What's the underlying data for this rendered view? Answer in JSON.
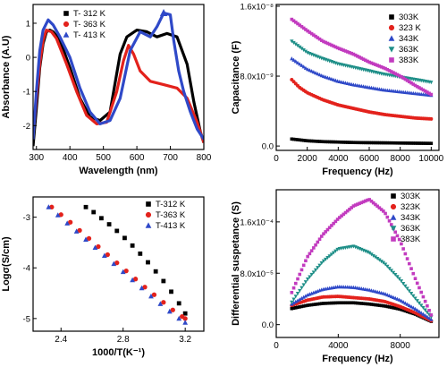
{
  "chart_data": [
    {
      "type": "line",
      "xlabel": "Wavelength (nm)",
      "ylabel": "Absorbance (A.U)",
      "xlim": [
        290,
        800
      ],
      "ylim": [
        -2.7,
        1.55
      ],
      "xticks": [
        300,
        400,
        500,
        600,
        700,
        800
      ],
      "yticks": [
        -2,
        -1,
        0,
        1
      ],
      "tick_labels_x": [
        "300",
        "400",
        "500",
        "600",
        "700",
        "800"
      ],
      "tick_labels_y": [
        "-2",
        "-1",
        "0",
        "1"
      ],
      "legend_position": "top-left",
      "grid": false,
      "series": [
        {
          "name": "T- 312 K",
          "color": "#000000",
          "marker": "square",
          "markers_at": [],
          "x": [
            290,
            300,
            310,
            320,
            330,
            340,
            350,
            370,
            400,
            430,
            460,
            490,
            520,
            550,
            570,
            600,
            630,
            660,
            690,
            720,
            750,
            770,
            790,
            800
          ],
          "y": [
            -2.6,
            -1.5,
            -0.3,
            0.4,
            0.75,
            0.8,
            0.75,
            0.5,
            -0.3,
            -1.2,
            -1.75,
            -1.85,
            -1.6,
            0.1,
            0.6,
            0.8,
            0.75,
            0.6,
            0.7,
            0.6,
            -0.2,
            -1.3,
            -2.2,
            -2.5
          ]
        },
        {
          "name": "T- 363 K",
          "color": "#e3221c",
          "marker": "circle",
          "markers_at": [],
          "x": [
            290,
            300,
            310,
            320,
            330,
            345,
            360,
            390,
            420,
            450,
            480,
            510,
            540,
            560,
            575,
            590,
            610,
            640,
            680,
            720,
            750,
            780,
            800
          ],
          "y": [
            -2.3,
            -1.2,
            -0.2,
            0.5,
            0.8,
            0.75,
            0.55,
            -0.2,
            -1.0,
            -1.7,
            -1.95,
            -1.9,
            -1.0,
            -0.1,
            0.35,
            0.1,
            -0.4,
            -0.7,
            -0.8,
            -0.9,
            -1.2,
            -1.9,
            -2.5
          ]
        },
        {
          "name": "T- 413 K",
          "color": "#2f49c8",
          "marker": "triangle",
          "markers_at": [
            680
          ],
          "x": [
            290,
            300,
            310,
            320,
            335,
            350,
            370,
            400,
            430,
            460,
            490,
            520,
            550,
            580,
            610,
            640,
            660,
            680,
            700,
            710,
            725,
            740,
            760,
            780,
            800
          ],
          "y": [
            -2.4,
            -1.0,
            0.2,
            0.8,
            1.1,
            0.95,
            0.6,
            0.0,
            -0.9,
            -1.6,
            -1.95,
            -1.85,
            -1.2,
            0.2,
            0.75,
            0.6,
            0.9,
            1.3,
            1.25,
            0.5,
            -0.4,
            -1.0,
            -1.6,
            -2.1,
            -2.4
          ]
        }
      ]
    },
    {
      "type": "scatter",
      "xlabel": "Frequency (Hz)",
      "ylabel": "Capacitance (F)",
      "xlim": [
        0,
        10500
      ],
      "ylim": [
        -5e-10,
        1.62e-08
      ],
      "xticks": [
        0,
        2000,
        4000,
        6000,
        8000,
        10000
      ],
      "yticks": [
        0,
        8e-09,
        1.6e-08
      ],
      "tick_labels_x": [
        "0",
        "2000",
        "4000",
        "6000",
        "8000",
        "10000"
      ],
      "tick_labels_y": [
        "0.0",
        "8.0x10⁻⁹",
        "1.6x10⁻⁸"
      ],
      "legend_position": "top-right",
      "grid": false,
      "series": [
        {
          "name": "303K",
          "color": "#000000",
          "marker": "square",
          "x": [
            1000,
            2000,
            3000,
            4000,
            5000,
            6000,
            7000,
            8000,
            9000,
            10000
          ],
          "y": [
            8e-10,
            6e-10,
            5e-10,
            4.5e-10,
            4e-10,
            3.8e-10,
            3.6e-10,
            3.4e-10,
            3.2e-10,
            3e-10
          ]
        },
        {
          "name": "323 K",
          "color": "#e3221c",
          "marker": "circle",
          "x": [
            1000,
            1500,
            2000,
            3000,
            4000,
            5000,
            6000,
            7000,
            8000,
            9000,
            10000
          ],
          "y": [
            7.6e-09,
            6.7e-09,
            6.1e-09,
            5.3e-09,
            4.7e-09,
            4.3e-09,
            3.9e-09,
            3.6e-09,
            3.4e-09,
            3.2e-09,
            3.1e-09
          ]
        },
        {
          "name": "343K",
          "color": "#2f49c8",
          "marker": "triangle",
          "x": [
            1000,
            2000,
            3000,
            4000,
            5000,
            6000,
            7000,
            8000,
            9000,
            10000
          ],
          "y": [
            1e-08,
            8.8e-09,
            8e-09,
            7.4e-09,
            7e-09,
            6.7e-09,
            6.4e-09,
            6.2e-09,
            6e-09,
            5.8e-09
          ]
        },
        {
          "name": "363K",
          "color": "#1f8f88",
          "marker": "triangle-down",
          "x": [
            1000,
            2000,
            3000,
            4000,
            5000,
            6000,
            7000,
            8000,
            9000,
            10000
          ],
          "y": [
            1.2e-08,
            1.07e-08,
            1e-08,
            9.4e-09,
            9e-09,
            8.6e-09,
            8.2e-09,
            7.9e-09,
            7.6e-09,
            7.3e-09
          ]
        },
        {
          "name": "383K",
          "color": "#c23bbf",
          "marker": "square",
          "x": [
            1000,
            2000,
            3000,
            4000,
            5000,
            6000,
            7000,
            8000,
            9000,
            10000
          ],
          "y": [
            1.45e-08,
            1.32e-08,
            1.2e-08,
            1.12e-08,
            1.05e-08,
            9.6e-09,
            8.9e-09,
            8e-09,
            6.9e-09,
            5.9e-09
          ]
        }
      ]
    },
    {
      "type": "scatter",
      "xlabel": "1000/T(K⁻¹)",
      "ylabel": "Logσ(S/cm)",
      "xlim": [
        2.22,
        3.32
      ],
      "ylim": [
        -5.25,
        -2.6
      ],
      "xticks": [
        2.4,
        2.8,
        3.2
      ],
      "yticks": [
        -5,
        -4,
        -3
      ],
      "tick_labels_x": [
        "2.4",
        "2.8",
        "3.2"
      ],
      "tick_labels_y": [
        "-5",
        "-4",
        "-3"
      ],
      "legend_position": "top-right",
      "grid": false,
      "series": [
        {
          "name": "T-312 K",
          "color": "#000000",
          "marker": "square",
          "x": [
            2.56,
            2.61,
            2.66,
            2.71,
            2.76,
            2.81,
            2.86,
            2.91,
            2.96,
            3.01,
            3.06,
            3.11,
            3.16,
            3.2
          ],
          "y": [
            -2.8,
            -2.9,
            -3.02,
            -3.14,
            -3.27,
            -3.41,
            -3.56,
            -3.72,
            -3.89,
            -4.07,
            -4.26,
            -4.47,
            -4.7,
            -4.9
          ]
        },
        {
          "name": "T-363 K",
          "color": "#e3221c",
          "marker": "circle",
          "x": [
            2.34,
            2.4,
            2.46,
            2.52,
            2.58,
            2.64,
            2.7,
            2.76,
            2.82,
            2.88,
            2.94,
            3.0,
            3.06,
            3.12,
            3.18,
            3.2
          ],
          "y": [
            -2.8,
            -2.95,
            -3.1,
            -3.26,
            -3.42,
            -3.58,
            -3.74,
            -3.9,
            -4.06,
            -4.22,
            -4.38,
            -4.53,
            -4.68,
            -4.83,
            -4.96,
            -5.0
          ]
        },
        {
          "name": "T-413 K",
          "color": "#2f49c8",
          "marker": "triangle",
          "x": [
            2.32,
            2.38,
            2.44,
            2.5,
            2.56,
            2.62,
            2.68,
            2.74,
            2.8,
            2.86,
            2.92,
            2.98,
            3.04,
            3.1,
            3.16,
            3.2
          ],
          "y": [
            -2.8,
            -2.96,
            -3.12,
            -3.28,
            -3.44,
            -3.6,
            -3.76,
            -3.92,
            -4.08,
            -4.24,
            -4.4,
            -4.56,
            -4.71,
            -4.86,
            -5.0,
            -5.08
          ]
        }
      ]
    },
    {
      "type": "scatter",
      "xlabel": "Frequency (Hz)",
      "ylabel": "Differential suspetance (S)",
      "xlim": [
        0,
        10500
      ],
      "ylim": [
        -2e-05,
        0.00021
      ],
      "xticks": [
        0,
        4000,
        8000
      ],
      "yticks": [
        0,
        8e-05,
        0.00016
      ],
      "tick_labels_x": [
        "0",
        "4000",
        "8000"
      ],
      "tick_labels_y": [
        "0.0",
        "8.0x10⁻⁵",
        "1.6x10⁻⁴"
      ],
      "legend_position": "top-right",
      "grid": false,
      "series": [
        {
          "name": "303K",
          "color": "#000000",
          "marker": "square",
          "x": [
            1000,
            2000,
            3000,
            4000,
            5000,
            6000,
            7000,
            8000,
            9000,
            10000
          ],
          "y": [
            2.5e-05,
            3e-05,
            3.3e-05,
            3.4e-05,
            3.4e-05,
            3.2e-05,
            2.9e-05,
            2.4e-05,
            1.6e-05,
            5e-06
          ]
        },
        {
          "name": "323K",
          "color": "#e3221c",
          "marker": "circle",
          "x": [
            1000,
            2000,
            3000,
            4000,
            5000,
            6000,
            7000,
            8000,
            9000,
            10000
          ],
          "y": [
            3e-05,
            3.8e-05,
            4.3e-05,
            4.4e-05,
            4.2e-05,
            4e-05,
            3.6e-05,
            2.8e-05,
            1.8e-05,
            6e-06
          ]
        },
        {
          "name": "343K",
          "color": "#2f49c8",
          "marker": "triangle",
          "x": [
            1000,
            2000,
            3000,
            4000,
            5000,
            6000,
            7000,
            8000,
            9000,
            10000
          ],
          "y": [
            3.2e-05,
            4.6e-05,
            5.5e-05,
            5.9e-05,
            5.8e-05,
            5.4e-05,
            4.8e-05,
            3.8e-05,
            2.4e-05,
            8e-06
          ]
        },
        {
          "name": "363K",
          "color": "#1f8f88",
          "marker": "triangle-down",
          "x": [
            1000,
            2000,
            3000,
            4000,
            5000,
            6000,
            7000,
            8000,
            9000,
            10000
          ],
          "y": [
            3.5e-05,
            7e-05,
            9.8e-05,
            0.000118,
            0.000122,
            0.000112,
            9.5e-05,
            7e-05,
            4e-05,
            1.2e-05
          ]
        },
        {
          "name": "383K",
          "color": "#c23bbf",
          "marker": "square",
          "x": [
            1000,
            2000,
            3000,
            4000,
            5000,
            6000,
            7000,
            8000,
            9000,
            10000
          ],
          "y": [
            5e-05,
            0.000105,
            0.00014,
            0.000165,
            0.000185,
            0.000195,
            0.000175,
            0.00013,
            7e-05,
            1.5e-05
          ]
        }
      ]
    }
  ]
}
